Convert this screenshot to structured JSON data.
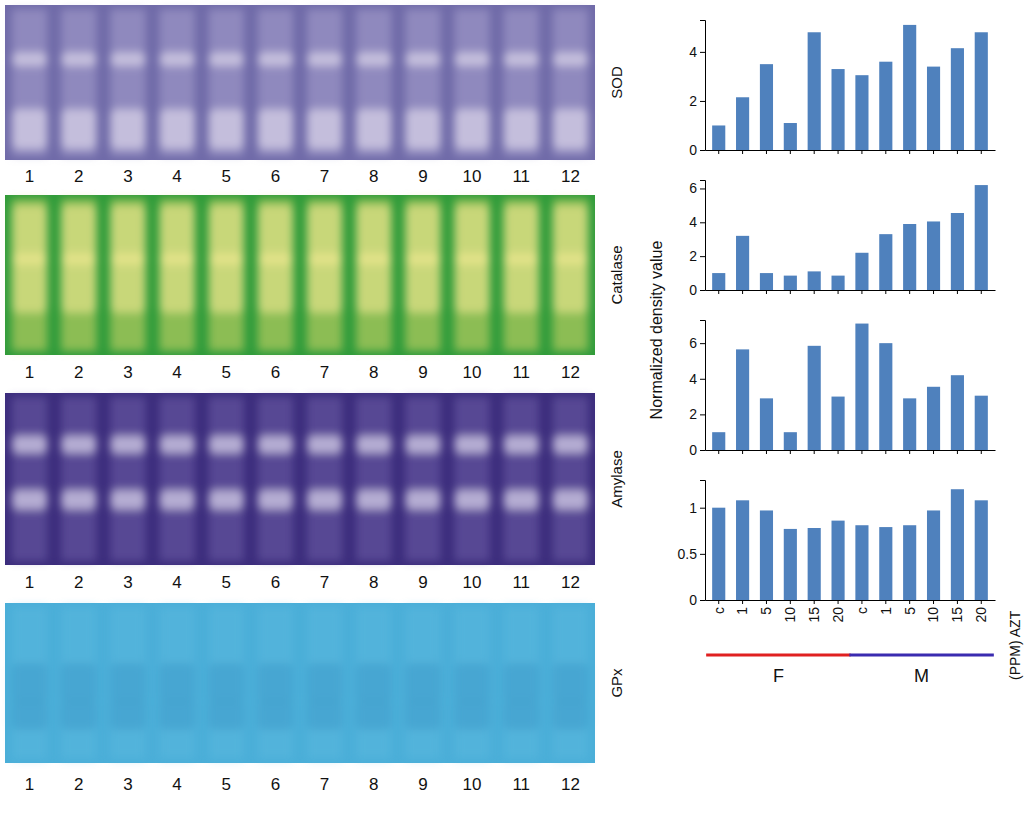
{
  "chart_data": [
    {
      "type": "bar",
      "title": "SOD",
      "color": "#4f81bd",
      "tick_labels": "y",
      "categories": [
        "c",
        "1",
        "5",
        "10",
        "15",
        "20",
        "c",
        "1",
        "5",
        "10",
        "15",
        "20"
      ],
      "values": [
        1,
        2.15,
        3.5,
        1.1,
        4.8,
        3.3,
        3.05,
        3.6,
        5.1,
        3.4,
        4.15,
        4.8
      ],
      "ylim": [
        0,
        5.3
      ],
      "yticks": [
        0,
        2,
        4
      ]
    },
    {
      "type": "bar",
      "title": "Catalase",
      "color": "#4f81bd",
      "tick_labels": "y",
      "categories": [
        "c",
        "1",
        "5",
        "10",
        "15",
        "20",
        "c",
        "1",
        "5",
        "10",
        "15",
        "20"
      ],
      "values": [
        1,
        3.2,
        1,
        0.85,
        1.1,
        0.85,
        2.2,
        3.3,
        3.9,
        4.05,
        4.55,
        6.2
      ],
      "ylim": [
        0,
        6.5
      ],
      "yticks": [
        0,
        2,
        4,
        6
      ]
    },
    {
      "type": "bar",
      "title": "Amylase",
      "color": "#4f81bd",
      "tick_labels": "y",
      "categories": [
        "c",
        "1",
        "5",
        "10",
        "15",
        "20",
        "c",
        "1",
        "5",
        "10",
        "15",
        "20"
      ],
      "values": [
        1,
        5.65,
        2.9,
        1,
        5.85,
        3,
        7.1,
        6,
        2.9,
        3.55,
        4.2,
        3.05
      ],
      "ylim": [
        0,
        7.3
      ],
      "yticks": [
        0,
        2,
        4,
        6
      ]
    },
    {
      "type": "bar",
      "title": "GPx",
      "color": "#4f81bd",
      "xlabel": "(PPM) AZT",
      "categories": [
        "c",
        "1",
        "5",
        "10",
        "15",
        "20",
        "c",
        "1",
        "5",
        "10",
        "15",
        "20"
      ],
      "values": [
        1,
        1.08,
        0.97,
        0.77,
        0.78,
        0.86,
        0.81,
        0.79,
        0.81,
        0.97,
        1.2,
        1.08
      ],
      "ylim": [
        0,
        1.3
      ],
      "yticks": [
        0,
        0.5,
        1
      ],
      "groups": [
        {
          "label": "F",
          "color": "#e02020",
          "from": 0,
          "to": 5
        },
        {
          "label": "M",
          "color": "#3a2bb0",
          "from": 6,
          "to": 11
        }
      ]
    }
  ],
  "ylabel": "Normalized density value",
  "gel_lanes": [
    "1",
    "2",
    "3",
    "4",
    "5",
    "6",
    "7",
    "8",
    "9",
    "10",
    "11",
    "12"
  ]
}
